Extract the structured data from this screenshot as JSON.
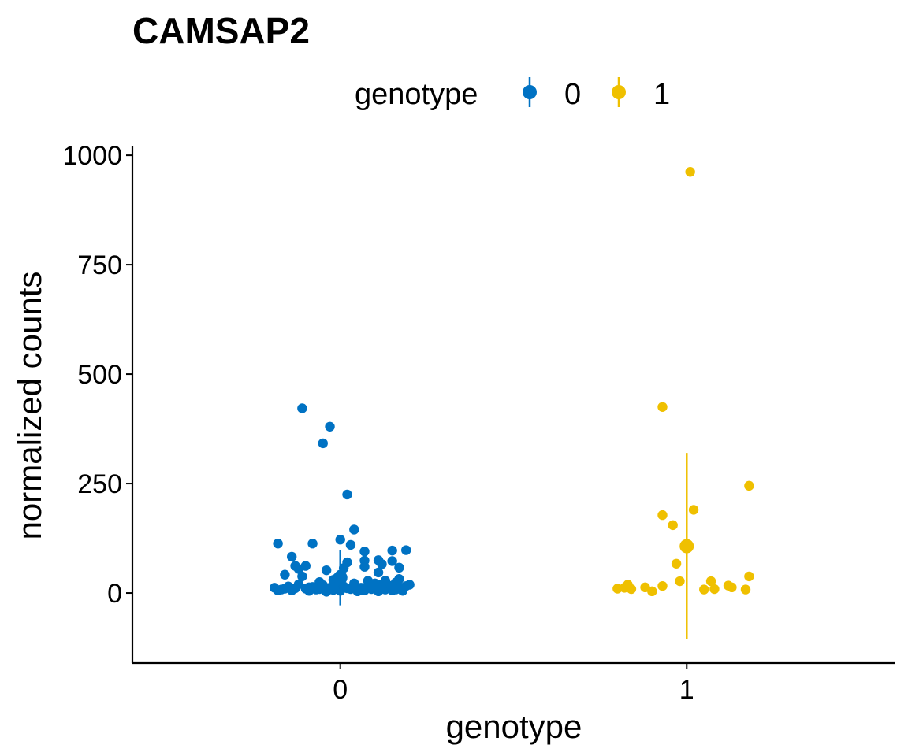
{
  "chart_data": {
    "type": "scatter",
    "title": "CAMSAP2",
    "xlabel": "genotype",
    "ylabel": "normalized counts",
    "categories": [
      "0",
      "1"
    ],
    "xlim": [
      -0.6,
      1.6
    ],
    "ylim": [
      -160,
      1020
    ],
    "yticks": [
      0,
      250,
      500,
      750,
      1000
    ],
    "yticklabels": [
      "0",
      "250",
      "500",
      "750",
      "1000"
    ],
    "grid": false,
    "legend": {
      "title": "genotype",
      "position": "top",
      "entries": [
        "0",
        "1"
      ]
    },
    "series": [
      {
        "name": "0",
        "color": "#0072C3",
        "category": 0,
        "points": [
          [
            -0.11,
            422
          ],
          [
            -0.03,
            380
          ],
          [
            -0.05,
            342
          ],
          [
            0.02,
            225
          ],
          [
            0.04,
            145
          ],
          [
            0.0,
            122
          ],
          [
            0.03,
            110
          ],
          [
            -0.18,
            113
          ],
          [
            -0.08,
            113
          ],
          [
            0.07,
            95
          ],
          [
            0.15,
            97
          ],
          [
            0.19,
            98
          ],
          [
            -0.14,
            83
          ],
          [
            0.11,
            75
          ],
          [
            0.07,
            74
          ],
          [
            0.02,
            70
          ],
          [
            0.15,
            73
          ],
          [
            -0.13,
            62
          ],
          [
            -0.1,
            62
          ],
          [
            -0.12,
            55
          ],
          [
            0.07,
            60
          ],
          [
            0.12,
            66
          ],
          [
            0.17,
            58
          ],
          [
            -0.04,
            52
          ],
          [
            0.01,
            57
          ],
          [
            -0.16,
            42
          ],
          [
            -0.11,
            38
          ],
          [
            0.0,
            42
          ],
          [
            0.11,
            47
          ],
          [
            0.17,
            32
          ],
          [
            0.08,
            28
          ],
          [
            -0.02,
            30
          ],
          [
            -0.06,
            25
          ],
          [
            0.13,
            28
          ],
          [
            -0.19,
            12
          ],
          [
            -0.17,
            8
          ],
          [
            -0.15,
            15
          ],
          [
            -0.14,
            6
          ],
          [
            -0.12,
            20
          ],
          [
            -0.1,
            10
          ],
          [
            -0.09,
            5
          ],
          [
            -0.08,
            14
          ],
          [
            -0.07,
            8
          ],
          [
            -0.05,
            18
          ],
          [
            -0.04,
            3
          ],
          [
            -0.03,
            12
          ],
          [
            -0.02,
            7
          ],
          [
            -0.01,
            20
          ],
          [
            0.0,
            5
          ],
          [
            0.01,
            15
          ],
          [
            0.03,
            9
          ],
          [
            0.04,
            22
          ],
          [
            0.05,
            4
          ],
          [
            0.06,
            12
          ],
          [
            0.07,
            6
          ],
          [
            0.08,
            18
          ],
          [
            0.09,
            9
          ],
          [
            0.1,
            14
          ],
          [
            0.11,
            4
          ],
          [
            0.12,
            20
          ],
          [
            0.13,
            8
          ],
          [
            0.14,
            13
          ],
          [
            0.15,
            6
          ],
          [
            0.16,
            24
          ],
          [
            0.17,
            10
          ],
          [
            0.18,
            5
          ],
          [
            0.19,
            16
          ],
          [
            0.2,
            19
          ],
          [
            -0.18,
            6
          ],
          [
            -0.13,
            11
          ],
          [
            -0.06,
            9
          ],
          [
            0.02,
            11
          ],
          [
            0.06,
            7
          ],
          [
            0.14,
            17
          ],
          [
            -0.16,
            10
          ],
          [
            -0.09,
            13
          ],
          [
            0.1,
            22
          ],
          [
            0.18,
            12
          ],
          [
            -0.01,
            34
          ],
          [
            0.04,
            13
          ],
          [
            0.16,
            8
          ],
          [
            0.12,
            10
          ]
        ],
        "summary": {
          "mean": 35,
          "lower": -28,
          "upper": 98
        }
      },
      {
        "name": "1",
        "color": "#EFC000",
        "category": 1,
        "points": [
          [
            0.01,
            962
          ],
          [
            -0.07,
            425
          ],
          [
            0.18,
            245
          ],
          [
            0.02,
            190
          ],
          [
            -0.07,
            178
          ],
          [
            -0.04,
            155
          ],
          [
            -0.03,
            67
          ],
          [
            0.18,
            38
          ],
          [
            -0.02,
            27
          ],
          [
            0.07,
            27
          ],
          [
            -0.18,
            12
          ],
          [
            -0.17,
            19
          ],
          [
            -0.16,
            9
          ],
          [
            -0.12,
            13
          ],
          [
            -0.1,
            4
          ],
          [
            -0.07,
            16
          ],
          [
            0.05,
            8
          ],
          [
            0.08,
            9
          ],
          [
            0.12,
            17
          ],
          [
            0.13,
            13
          ],
          [
            0.17,
            8
          ],
          [
            -0.2,
            10
          ]
        ],
        "summary": {
          "mean": 107,
          "lower": -105,
          "upper": 320
        }
      }
    ]
  }
}
